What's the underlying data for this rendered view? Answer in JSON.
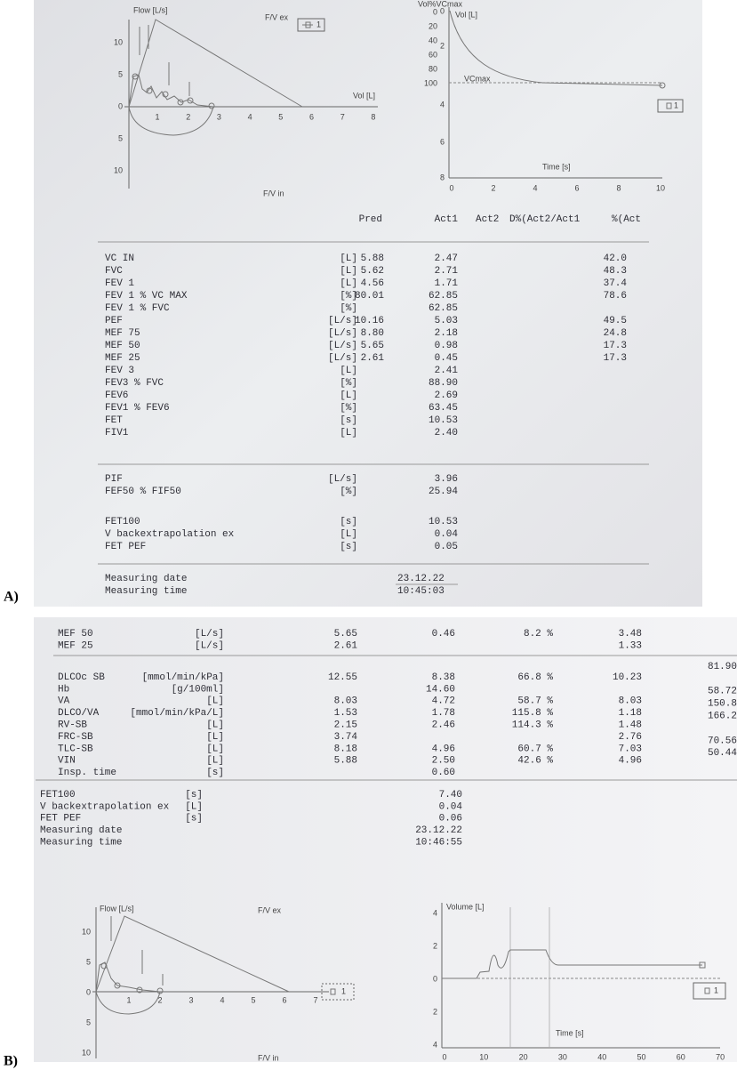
{
  "panel_a": {
    "label": "A)",
    "flow_volume": {
      "flow_label": "Flow [L/s]",
      "ex_label": "F/V ex",
      "in_label": "F/V in",
      "vol_label": "Vol [L]",
      "legend": "1",
      "yticks": [
        "10",
        "5",
        "0",
        "5",
        "10"
      ],
      "xticks": [
        "1",
        "2",
        "3",
        "4",
        "5",
        "6",
        "7",
        "8"
      ]
    },
    "volume_time": {
      "pct_label": "Vol%VCmax",
      "pct_ticks": [
        "0",
        "20",
        "40",
        "60",
        "80",
        "100"
      ],
      "vol_label": "Vol [L]",
      "vcmax_label": "VCmax",
      "yticks": [
        "0",
        "2",
        "4",
        "6",
        "8"
      ],
      "xticks": [
        "0",
        "2",
        "4",
        "6",
        "8",
        "10"
      ],
      "time_label": "Time [s]",
      "legend": "1"
    },
    "table": {
      "header": [
        "Pred",
        "Act1",
        "Act2",
        "D%(Act2/Act1",
        "%(Act"
      ],
      "sections": [
        {
          "rows": [
            {
              "name": "VC IN",
              "unit": "[L]",
              "pred": "5.88",
              "act1": "2.47",
              "pct": "42.0"
            },
            {
              "name": "FVC",
              "unit": "[L]",
              "pred": "5.62",
              "act1": "2.71",
              "pct": "48.3"
            },
            {
              "name": "FEV 1",
              "unit": "[L]",
              "pred": "4.56",
              "act1": "1.71",
              "pct": "37.4"
            },
            {
              "name": "FEV 1 % VC MAX",
              "unit": "[%]",
              "pred": "80.01",
              "act1": "62.85",
              "pct": "78.6"
            },
            {
              "name": "FEV 1 % FVC",
              "unit": "[%]",
              "act1": "62.85"
            },
            {
              "name": "PEF",
              "unit": "[L/s]",
              "pred": "10.16",
              "act1": "5.03",
              "pct": "49.5"
            },
            {
              "name": "MEF 75",
              "unit": "[L/s]",
              "pred": "8.80",
              "act1": "2.18",
              "pct": "24.8"
            },
            {
              "name": "MEF 50",
              "unit": "[L/s]",
              "pred": "5.65",
              "act1": "0.98",
              "pct": "17.3"
            },
            {
              "name": "MEF 25",
              "unit": "[L/s]",
              "pred": "2.61",
              "act1": "0.45",
              "pct": "17.3"
            },
            {
              "name": "FEV 3",
              "unit": "[L]",
              "act1": "2.41"
            },
            {
              "name": "FEV3 % FVC",
              "unit": "[%]",
              "act1": "88.90"
            },
            {
              "name": "FEV6",
              "unit": "[L]",
              "act1": "2.69"
            },
            {
              "name": "FEV1 % FEV6",
              "unit": "[%]",
              "act1": "63.45"
            },
            {
              "name": "FET",
              "unit": "[s]",
              "act1": "10.53"
            },
            {
              "name": "FIV1",
              "unit": "[L]",
              "act1": "2.40"
            }
          ]
        },
        {
          "rows": [
            {
              "name": "PIF",
              "unit": "[L/s]",
              "act1": "3.96"
            },
            {
              "name": "FEF50 % FIF50",
              "unit": "[%]",
              "act1": "25.94"
            }
          ]
        },
        {
          "rows": [
            {
              "name": "FET100",
              "unit": "[s]",
              "act1": "10.53"
            },
            {
              "name": "V backextrapolation ex",
              "unit": "[L]",
              "act1": "0.04"
            },
            {
              "name": "FET PEF",
              "unit": "[s]",
              "act1": "0.05"
            }
          ]
        },
        {
          "rows": [
            {
              "name": "Measuring date",
              "act1": "23.12.22"
            },
            {
              "name": "Measuring time",
              "act1": "10:45:03"
            }
          ]
        }
      ]
    }
  },
  "panel_b": {
    "label": "B)",
    "table": {
      "sections": [
        {
          "rows": [
            {
              "name": "MEF 50",
              "unit": "[L/s]",
              "pred": "5.65",
              "act": "0.46",
              "pct": "8.2 %",
              "col4": "3.48"
            },
            {
              "name": "MEF 25",
              "unit": "[L/s]",
              "pred": "2.61",
              "col4": "1.33"
            }
          ]
        },
        {
          "rows": [
            {
              "name": "DLCOc SB",
              "unit": "[mmol/min/kPa]",
              "pred": "12.55",
              "act": "8.38",
              "pct": "66.8 %",
              "col4": "10.23",
              "col5": "81.90"
            },
            {
              "name": "Hb",
              "unit": "[g/100ml]",
              "act": "14.60"
            },
            {
              "name": "VA",
              "unit": "[L]",
              "pred": "8.03",
              "act": "4.72",
              "pct": "58.7 %",
              "col4": "8.03",
              "col5": "58.72"
            },
            {
              "name": "DLCO/VA",
              "unit": "[mmol/min/kPa/L]",
              "pred": "1.53",
              "act": "1.78",
              "pct": "115.8 %",
              "col4": "1.18",
              "col5": "150.8"
            },
            {
              "name": "RV-SB",
              "unit": "[L]",
              "pred": "2.15",
              "act": "2.46",
              "pct": "114.3 %",
              "col4": "1.48",
              "col5": "166.2"
            },
            {
              "name": "FRC-SB",
              "unit": "[L]",
              "pred": "3.74",
              "col4": "2.76"
            },
            {
              "name": "TLC-SB",
              "unit": "[L]",
              "pred": "8.18",
              "act": "4.96",
              "pct": "60.7 %",
              "col4": "7.03",
              "col5": "70.56"
            },
            {
              "name": "VIN",
              "unit": "[L]",
              "pred": "5.88",
              "act": "2.50",
              "pct": "42.6 %",
              "col4": "4.96",
              "col5": "50.44"
            },
            {
              "name": "Insp. time",
              "unit": "[s]",
              "act": "0.60"
            }
          ]
        },
        {
          "rows": [
            {
              "name": "FET100",
              "unit": "[s]",
              "act": "7.40"
            },
            {
              "name": "V backextrapolation ex",
              "unit": "[L]",
              "act": "0.04"
            },
            {
              "name": "FET PEF",
              "unit": "[s]",
              "act": "0.06"
            },
            {
              "name": "Measuring date",
              "act": "23.12.22"
            },
            {
              "name": "Measuring time",
              "act": "10:46:55"
            }
          ]
        }
      ]
    },
    "flow_volume": {
      "flow_label": "Flow [L/s]",
      "ex_label": "F/V ex",
      "in_label": "F/V in",
      "legend": "1",
      "yticks": [
        "10",
        "5",
        "0",
        "5",
        "10"
      ],
      "xticks": [
        "1",
        "2",
        "3",
        "4",
        "5",
        "6",
        "7"
      ]
    },
    "volume_time": {
      "vol_label": "Volume [L]",
      "yticks": [
        "4",
        "2",
        "0",
        "2",
        "4"
      ],
      "xticks": [
        "0",
        "10",
        "20",
        "30",
        "40",
        "50",
        "60",
        "70"
      ],
      "time_label": "Time [s]",
      "legend": "1"
    }
  }
}
